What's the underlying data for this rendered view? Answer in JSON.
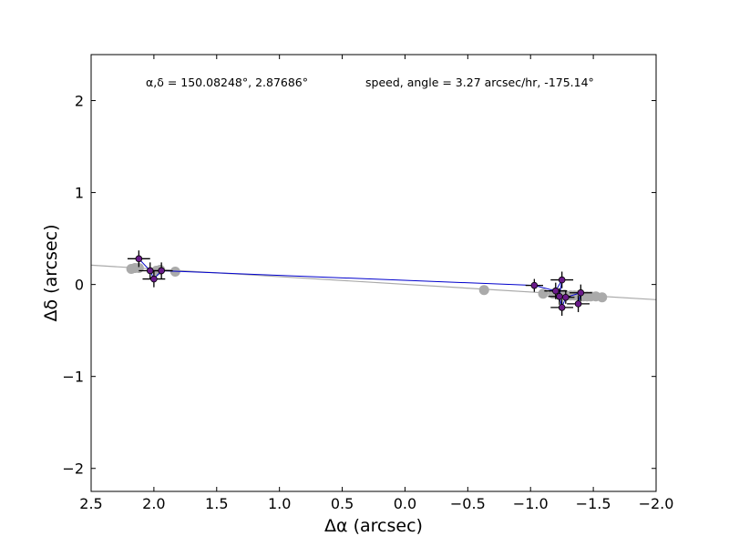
{
  "chart_data": {
    "type": "scatter",
    "title": "",
    "xlabel": "Δα (arcsec)",
    "ylabel": "Δδ (arcsec)",
    "xlim": [
      2.5,
      -2.0
    ],
    "ylim": [
      -2.25,
      2.5
    ],
    "x_ticks": [
      2.5,
      2.0,
      1.5,
      1.0,
      0.5,
      0.0,
      -0.5,
      -1.0,
      -1.5,
      -2.0
    ],
    "x_tick_labels": [
      "2.5",
      "2.0",
      "1.5",
      "1.0",
      "0.5",
      "0.0",
      "−0.5",
      "−1.0",
      "−1.5",
      "−2.0"
    ],
    "y_ticks": [
      -2,
      -1,
      0,
      1,
      2
    ],
    "y_tick_labels": [
      "−2",
      "−1",
      "0",
      "1",
      "2"
    ],
    "grid": false,
    "annotations": {
      "position": "α,δ = 150.08248°, 2.87686°",
      "motion": "speed, angle = 3.27 arcsec/hr, -175.14°"
    },
    "fit_line": {
      "x": [
        2.5,
        -2.0
      ],
      "y": [
        0.21,
        -0.165
      ],
      "color": "#aaaaaa"
    },
    "predicted_positions": {
      "color": "#aaaaaa",
      "x": [
        2.18,
        2.15,
        2.12,
        1.98,
        1.95,
        1.83,
        -0.63,
        -1.1,
        -1.18,
        -1.22,
        -1.27,
        -1.32,
        -1.35,
        -1.38,
        -1.42,
        -1.45,
        -1.48,
        -1.52,
        -1.57
      ],
      "y": [
        0.17,
        0.18,
        0.18,
        0.15,
        0.16,
        0.14,
        -0.06,
        -0.1,
        -0.1,
        -0.11,
        -0.11,
        -0.12,
        -0.12,
        -0.12,
        -0.13,
        -0.13,
        -0.13,
        -0.13,
        -0.14
      ]
    },
    "observations": {
      "color": "#6a1a8a",
      "path_color": "#0000cc",
      "x": [
        2.12,
        2.03,
        2.0,
        1.94,
        -1.03,
        -1.2,
        -1.25,
        -1.23,
        -1.25,
        -1.28,
        -1.4,
        -1.38
      ],
      "y": [
        0.28,
        0.15,
        0.06,
        0.15,
        -0.01,
        -0.07,
        0.05,
        -0.13,
        -0.25,
        -0.14,
        -0.09,
        -0.21
      ],
      "xerr": [
        0.09,
        0.09,
        0.09,
        0.09,
        0.07,
        0.09,
        0.09,
        0.09,
        0.09,
        0.07,
        0.09,
        0.09
      ],
      "yerr": [
        0.09,
        0.09,
        0.09,
        0.09,
        0.07,
        0.09,
        0.09,
        0.09,
        0.09,
        0.07,
        0.09,
        0.09
      ]
    }
  }
}
